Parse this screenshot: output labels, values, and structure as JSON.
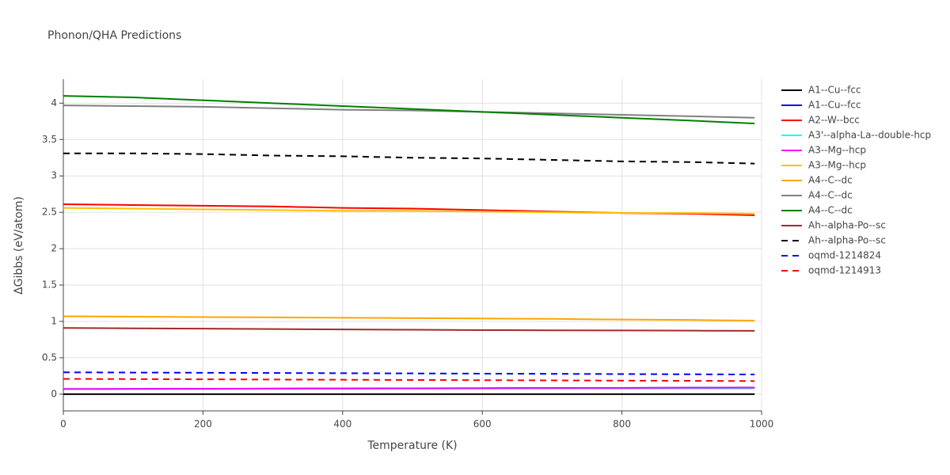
{
  "chart_data": {
    "type": "line",
    "title": "Phonon/QHA Predictions",
    "x_label": "Temperature (K)",
    "y_label": "ΔGibbs (eV/atom)",
    "x": [
      0,
      100,
      200,
      300,
      400,
      500,
      600,
      700,
      800,
      900,
      990
    ],
    "series": [
      {
        "name": "A1--Cu--fcc",
        "color": "#000000",
        "dash": "solid",
        "values": [
          0,
          0,
          0,
          0,
          0,
          0,
          0,
          0,
          0,
          0,
          0
        ]
      },
      {
        "name": "A1--Cu--fcc",
        "color": "#0000ff",
        "dash": "solid",
        "values": [
          0.07,
          0.072,
          0.074,
          0.076,
          0.078,
          0.08,
          0.082,
          0.084,
          0.086,
          0.088,
          0.09
        ]
      },
      {
        "name": "A2--W--bcc",
        "color": "#ff0000",
        "dash": "solid",
        "values": [
          2.61,
          2.6,
          2.59,
          2.58,
          2.56,
          2.55,
          2.53,
          2.51,
          2.49,
          2.48,
          2.46
        ]
      },
      {
        "name": "A3'--alpha-La--double-hcp",
        "color": "#00ffff",
        "dash": "solid",
        "values": [
          0.07,
          0.071,
          0.072,
          0.073,
          0.074,
          0.075,
          0.076,
          0.077,
          0.078,
          0.079,
          0.08
        ]
      },
      {
        "name": "A3--Mg--hcp",
        "color": "#ff00ff",
        "dash": "solid",
        "values": [
          0.07,
          0.072,
          0.074,
          0.076,
          0.078,
          0.08,
          0.082,
          0.084,
          0.086,
          0.088,
          0.09
        ]
      },
      {
        "name": "A3--Mg--hcp",
        "color": "#ffc000",
        "dash": "solid",
        "values": [
          2.56,
          2.55,
          2.54,
          2.53,
          2.52,
          2.52,
          2.51,
          2.5,
          2.49,
          2.49,
          2.48
        ]
      },
      {
        "name": "A4--C--dc",
        "color": "#ffa500",
        "dash": "solid",
        "values": [
          1.07,
          1.065,
          1.06,
          1.055,
          1.05,
          1.045,
          1.04,
          1.035,
          1.025,
          1.02,
          1.01
        ]
      },
      {
        "name": "A4--C--dc",
        "color": "#808080",
        "dash": "solid",
        "values": [
          3.97,
          3.96,
          3.95,
          3.93,
          3.91,
          3.9,
          3.88,
          3.86,
          3.84,
          3.82,
          3.8
        ]
      },
      {
        "name": "A4--C--dc",
        "color": "#008000",
        "dash": "solid",
        "values": [
          4.1,
          4.08,
          4.04,
          4.0,
          3.96,
          3.92,
          3.88,
          3.84,
          3.8,
          3.76,
          3.72
        ]
      },
      {
        "name": "Ah--alpha-Po--sc",
        "color": "#a52a2a",
        "dash": "solid",
        "values": [
          0.91,
          0.905,
          0.9,
          0.895,
          0.89,
          0.885,
          0.88,
          0.878,
          0.876,
          0.873,
          0.87
        ]
      },
      {
        "name": "Ah--alpha-Po--sc",
        "color": "#000000",
        "dash": "dash",
        "values": [
          3.31,
          3.31,
          3.3,
          3.28,
          3.27,
          3.25,
          3.24,
          3.22,
          3.2,
          3.19,
          3.17
        ]
      },
      {
        "name": "oqmd-1214824",
        "color": "#0000ff",
        "dash": "dash",
        "values": [
          0.3,
          0.297,
          0.294,
          0.291,
          0.288,
          0.285,
          0.282,
          0.279,
          0.276,
          0.273,
          0.27
        ]
      },
      {
        "name": "oqmd-1214913",
        "color": "#ff0000",
        "dash": "dash",
        "values": [
          0.21,
          0.207,
          0.204,
          0.201,
          0.198,
          0.195,
          0.192,
          0.189,
          0.186,
          0.183,
          0.18
        ]
      }
    ],
    "xlim": [
      0,
      1000
    ],
    "xticks": [
      0,
      200,
      400,
      600,
      800,
      1000
    ],
    "ylim": [
      -0.23,
      4.33
    ],
    "yticks": [
      0,
      0.5,
      1,
      1.5,
      2,
      2.5,
      3,
      3.5,
      4
    ],
    "grid": true,
    "legend": "right"
  }
}
